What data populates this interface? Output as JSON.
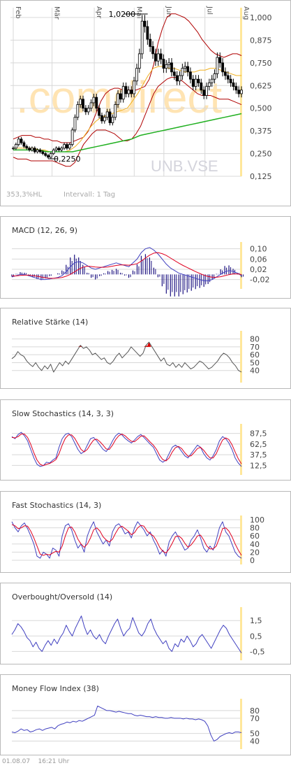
{
  "chart_data": [
    {
      "type": "candlestick",
      "symbol": "UNB.VSE",
      "watermark": ".comdirect",
      "months": [
        "Feb",
        "Mär",
        "Apr",
        "Mai",
        "Jun",
        "Jul",
        "Aug"
      ],
      "yticks": [
        "1,000",
        "0,875",
        "0,750",
        "0,625",
        "0,500",
        "0,375",
        "0,250",
        "0,125"
      ],
      "ylim": [
        0.125,
        1.0
      ],
      "high_label": "1,0200",
      "low_label": "0,2250",
      "range_text": "353,3%HL",
      "interval_text": "Intervall: 1 Tag",
      "close": [
        0.28,
        0.3,
        0.33,
        0.31,
        0.29,
        0.28,
        0.27,
        0.28,
        0.26,
        0.27,
        0.26,
        0.25,
        0.24,
        0.23,
        0.25,
        0.27,
        0.28,
        0.27,
        0.28,
        0.3,
        0.28,
        0.3,
        0.38,
        0.45,
        0.52,
        0.55,
        0.5,
        0.48,
        0.5,
        0.53,
        0.56,
        0.5,
        0.46,
        0.43,
        0.45,
        0.48,
        0.42,
        0.45,
        0.52,
        0.58,
        0.55,
        0.62,
        0.58,
        0.6,
        0.58,
        0.65,
        0.72,
        0.8,
        0.98,
        0.95,
        0.88,
        0.84,
        0.8,
        0.76,
        0.8,
        0.77,
        0.72,
        0.74,
        0.75,
        0.7,
        0.68,
        0.65,
        0.68,
        0.72,
        0.73,
        0.7,
        0.66,
        0.62,
        0.66,
        0.64,
        0.6,
        0.57,
        0.62,
        0.64,
        0.66,
        0.69,
        0.78,
        0.75,
        0.7,
        0.68,
        0.66,
        0.64,
        0.62,
        0.6,
        0.58,
        0.6
      ],
      "bb_upper": [
        0.33,
        0.34,
        0.35,
        0.35,
        0.35,
        0.34,
        0.34,
        0.33,
        0.33,
        0.32,
        0.32,
        0.31,
        0.31,
        0.31,
        0.32,
        0.33,
        0.34,
        0.37,
        0.42,
        0.48,
        0.54,
        0.58,
        0.6,
        0.61,
        0.61,
        0.6,
        0.6,
        0.6,
        0.6,
        0.61,
        0.62,
        0.66,
        0.74,
        0.86,
        0.94,
        1.0,
        1.02,
        1.02,
        1.01,
        1.0,
        0.98,
        0.95,
        0.92,
        0.88,
        0.85,
        0.82,
        0.8,
        0.79,
        0.78,
        0.79,
        0.8,
        0.8,
        0.79
      ],
      "bb_lower": [
        0.23,
        0.22,
        0.22,
        0.22,
        0.21,
        0.21,
        0.21,
        0.21,
        0.21,
        0.21,
        0.2,
        0.19,
        0.18,
        0.18,
        0.2,
        0.25,
        0.3,
        0.33,
        0.36,
        0.38,
        0.38,
        0.38,
        0.37,
        0.36,
        0.34,
        0.32,
        0.32,
        0.33,
        0.36,
        0.4,
        0.46,
        0.52,
        0.58,
        0.62,
        0.64,
        0.66,
        0.67,
        0.67,
        0.66,
        0.64,
        0.62,
        0.6,
        0.58,
        0.57,
        0.57,
        0.57,
        0.56,
        0.55,
        0.55,
        0.55,
        0.54,
        0.53,
        0.52
      ],
      "ma_mid": [
        0.28,
        0.28,
        0.28,
        0.28,
        0.28,
        0.27,
        0.27,
        0.26,
        0.26,
        0.26,
        0.26,
        0.27,
        0.29,
        0.32,
        0.36,
        0.4,
        0.43,
        0.45,
        0.46,
        0.47,
        0.48,
        0.49,
        0.5,
        0.54,
        0.58,
        0.63,
        0.68,
        0.72,
        0.73,
        0.73,
        0.72,
        0.72,
        0.71,
        0.7,
        0.7,
        0.7,
        0.71,
        0.71,
        0.72,
        0.72,
        0.71,
        0.7,
        0.69,
        0.68,
        0.68
      ],
      "ma_long": [
        0.27,
        0.27,
        0.27,
        0.27,
        0.26,
        0.26,
        0.26,
        0.26,
        0.27,
        0.28,
        0.29,
        0.3,
        0.31,
        0.32,
        0.33,
        0.35,
        0.36,
        0.37,
        0.38,
        0.39,
        0.4,
        0.41,
        0.42,
        0.43,
        0.44,
        0.45,
        0.46,
        0.47
      ]
    },
    {
      "type": "line",
      "title": "MACD (12, 26, 9)",
      "yticks": [
        "0,10",
        "0,06",
        "0,02",
        "-0,02"
      ],
      "ylim": [
        -0.04,
        0.11
      ],
      "series": [
        {
          "values": [
            -0.01,
            -0.005,
            0.0,
            0.0,
            -0.005,
            -0.01,
            -0.015,
            -0.02,
            -0.02,
            -0.018,
            -0.015,
            -0.012,
            -0.005,
            0.01,
            0.03,
            0.045,
            0.05,
            0.045,
            0.035,
            0.025,
            0.02,
            0.025,
            0.03,
            0.035,
            0.04,
            0.045,
            0.04,
            0.035,
            0.03,
            0.045,
            0.06,
            0.085,
            0.1,
            0.105,
            0.095,
            0.08,
            0.06,
            0.04,
            0.025,
            0.015,
            0.005,
            0.0,
            -0.005,
            -0.01,
            -0.015,
            -0.02,
            -0.025,
            -0.025,
            -0.02,
            -0.01,
            0.0,
            0.01,
            0.015,
            0.012,
            0.005,
            -0.005
          ]
        },
        {
          "values": [
            -0.006,
            -0.006,
            -0.004,
            -0.003,
            -0.003,
            -0.005,
            -0.007,
            -0.01,
            -0.013,
            -0.015,
            -0.015,
            -0.014,
            -0.012,
            -0.007,
            0.0,
            0.01,
            0.02,
            0.028,
            0.032,
            0.031,
            0.029,
            0.028,
            0.028,
            0.029,
            0.032,
            0.035,
            0.037,
            0.037,
            0.036,
            0.038,
            0.042,
            0.052,
            0.064,
            0.075,
            0.083,
            0.085,
            0.081,
            0.074,
            0.064,
            0.054,
            0.044,
            0.035,
            0.027,
            0.019,
            0.011,
            0.004,
            -0.003,
            -0.008,
            -0.011,
            -0.011,
            -0.009,
            -0.005,
            -0.001,
            0.002,
            0.002,
            0.0
          ]
        }
      ]
    },
    {
      "type": "line",
      "title": "Relative Stärke (14)",
      "yticks": [
        "80",
        "70",
        "60",
        "50",
        "40"
      ],
      "ylim": [
        30,
        85
      ],
      "values": [
        55,
        58,
        64,
        60,
        58,
        52,
        48,
        45,
        50,
        44,
        40,
        46,
        42,
        48,
        38,
        44,
        50,
        46,
        52,
        48,
        54,
        60,
        66,
        72,
        68,
        70,
        66,
        60,
        62,
        58,
        54,
        56,
        50,
        48,
        52,
        58,
        62,
        56,
        60,
        64,
        70,
        66,
        62,
        58,
        62,
        72,
        76,
        70,
        64,
        58,
        52,
        56,
        48,
        46,
        50,
        44,
        48,
        44,
        50,
        46,
        42,
        44,
        48,
        52,
        50,
        46,
        42,
        44,
        48,
        52,
        58,
        62,
        60,
        56,
        50,
        46,
        40,
        38
      ]
    },
    {
      "type": "line",
      "title": "Slow Stochastics (14, 3, 3)",
      "yticks": [
        "87,5",
        "62,5",
        "37,5",
        "12,5"
      ],
      "ylim": [
        0,
        100
      ],
      "series": [
        {
          "values": [
            80,
            75,
            85,
            90,
            82,
            70,
            50,
            30,
            15,
            10,
            12,
            20,
            18,
            25,
            30,
            55,
            75,
            85,
            88,
            80,
            65,
            50,
            40,
            45,
            60,
            75,
            78,
            70,
            60,
            50,
            45,
            55,
            70,
            82,
            88,
            84,
            76,
            70,
            65,
            72,
            80,
            85,
            78,
            70,
            62,
            55,
            40,
            25,
            20,
            25,
            40,
            55,
            60,
            55,
            45,
            35,
            30,
            40,
            50,
            60,
            55,
            40,
            30,
            25,
            35,
            50,
            70,
            80,
            75,
            65,
            50,
            30,
            18,
            10
          ]
        },
        {
          "values": [
            78,
            77,
            80,
            86,
            86,
            78,
            62,
            42,
            25,
            15,
            12,
            15,
            17,
            21,
            26,
            40,
            60,
            76,
            84,
            84,
            76,
            63,
            50,
            44,
            50,
            62,
            72,
            74,
            68,
            60,
            51,
            50,
            60,
            73,
            82,
            86,
            82,
            75,
            69,
            68,
            74,
            81,
            82,
            75,
            67,
            60,
            50,
            36,
            26,
            23,
            30,
            44,
            54,
            57,
            52,
            42,
            34,
            35,
            43,
            52,
            55,
            48,
            38,
            30,
            30,
            40,
            57,
            72,
            77,
            73,
            61,
            44,
            28,
            16
          ]
        }
      ]
    },
    {
      "type": "line",
      "title": "Fast Stochastics (14, 3)",
      "yticks": [
        "100",
        "80",
        "60",
        "40",
        "20",
        "0"
      ],
      "ylim": [
        0,
        100
      ],
      "series": [
        {
          "values": [
            95,
            80,
            70,
            85,
            92,
            78,
            60,
            40,
            10,
            5,
            20,
            15,
            5,
            30,
            25,
            10,
            60,
            85,
            90,
            75,
            50,
            30,
            40,
            20,
            60,
            80,
            95,
            70,
            55,
            40,
            50,
            35,
            70,
            85,
            90,
            80,
            65,
            70,
            55,
            80,
            95,
            85,
            75,
            60,
            70,
            50,
            35,
            15,
            25,
            10,
            45,
            60,
            70,
            55,
            40,
            25,
            30,
            50,
            60,
            75,
            55,
            30,
            20,
            35,
            25,
            50,
            80,
            95,
            70,
            60,
            40,
            20,
            10,
            5
          ]
        },
        {
          "values": [
            88,
            85,
            78,
            80,
            85,
            84,
            72,
            55,
            35,
            15,
            12,
            15,
            13,
            18,
            22,
            20,
            35,
            60,
            80,
            82,
            70,
            52,
            40,
            32,
            40,
            55,
            75,
            80,
            72,
            58,
            50,
            45,
            52,
            67,
            80,
            84,
            78,
            72,
            63,
            68,
            80,
            86,
            84,
            72,
            65,
            60,
            48,
            32,
            22,
            18,
            28,
            42,
            58,
            60,
            54,
            42,
            32,
            38,
            48,
            60,
            62,
            50,
            35,
            28,
            28,
            35,
            55,
            78,
            80,
            72,
            58,
            40,
            25,
            12
          ]
        }
      ]
    },
    {
      "type": "line",
      "title": "Overbought/Oversold (14)",
      "yticks": [
        "1,5",
        "0,5",
        "-0,5"
      ],
      "ylim": [
        -0.8,
        2.1
      ],
      "values": [
        0.6,
        0.9,
        1.3,
        1.1,
        0.8,
        0.4,
        0.2,
        -0.2,
        0.1,
        -0.3,
        -0.5,
        -0.1,
        0.2,
        -0.1,
        0.3,
        0.0,
        0.4,
        0.7,
        1.2,
        0.8,
        0.5,
        1.0,
        1.4,
        1.8,
        1.1,
        0.6,
        0.9,
        0.5,
        0.3,
        0.6,
        0.2,
        0.0,
        0.5,
        0.9,
        1.3,
        1.6,
        1.0,
        0.5,
        0.8,
        1.0,
        1.7,
        1.2,
        0.7,
        0.5,
        0.8,
        1.3,
        1.6,
        1.0,
        0.6,
        0.3,
        0.0,
        0.2,
        -0.3,
        -0.5,
        0.0,
        -0.2,
        0.3,
        0.1,
        0.5,
        0.2,
        -0.2,
        0.0,
        0.4,
        0.6,
        0.3,
        0.0,
        -0.3,
        0.1,
        0.5,
        0.9,
        1.2,
        1.0,
        0.6,
        0.3,
        0.0,
        -0.3,
        -0.6
      ]
    },
    {
      "type": "line",
      "title": "Money Flow Index (38)",
      "yticks": [
        "80",
        "70",
        "50",
        "40"
      ],
      "ylim": [
        35,
        90
      ],
      "values": [
        52,
        51,
        53,
        56,
        54,
        55,
        52,
        53,
        55,
        56,
        54,
        56,
        57,
        58,
        56,
        60,
        62,
        63,
        65,
        64,
        66,
        65,
        67,
        66,
        68,
        70,
        72,
        74,
        86,
        84,
        82,
        80,
        80,
        79,
        78,
        79,
        78,
        77,
        76,
        76,
        74,
        73,
        74,
        73,
        72,
        72,
        71,
        72,
        71,
        71,
        70,
        70,
        71,
        70,
        70,
        70,
        69,
        70,
        69,
        69,
        68,
        69,
        68,
        66,
        60,
        48,
        40,
        42,
        46,
        48,
        50,
        51,
        50,
        52,
        52,
        51
      ]
    }
  ],
  "footer": {
    "date": "01.08.07",
    "time": "16:21 Uhr"
  },
  "colors": {
    "candle": "#000000",
    "bollinger": "#b00000",
    "ma_mid": "#f0b020",
    "ma_long": "#20b020",
    "macd_line": "#4040c0",
    "signal_line": "#e00020",
    "histogram": "#1a1080",
    "indicator": "#555555",
    "overbought_fill": "#dd0000",
    "grid": "#d8d8d8",
    "highlight": "#ffe79a"
  }
}
